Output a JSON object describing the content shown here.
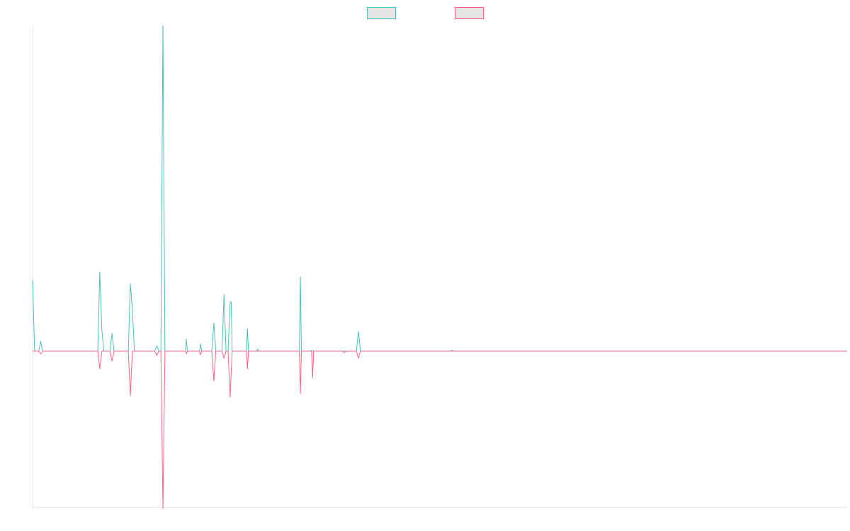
{
  "chart_data": {
    "type": "line",
    "title": "",
    "xlabel": "",
    "ylabel": "",
    "grid": false,
    "legend_placement": "top-center",
    "legend_swatch_fill": "#e6e6e6",
    "x_range": [
      0,
      400
    ],
    "ylim": [
      -220,
      460
    ],
    "series": [
      {
        "color": "#4bc0c0",
        "points": [
          [
            0,
            100
          ],
          [
            1,
            0
          ],
          [
            3,
            0
          ],
          [
            4,
            14
          ],
          [
            5,
            0
          ],
          [
            32,
            0
          ],
          [
            33,
            112
          ],
          [
            34,
            30
          ],
          [
            35,
            0
          ],
          [
            38,
            0
          ],
          [
            39,
            25
          ],
          [
            40,
            0
          ],
          [
            47,
            0
          ],
          [
            48,
            95
          ],
          [
            49,
            60
          ],
          [
            50,
            0
          ],
          [
            60,
            0
          ],
          [
            61,
            8
          ],
          [
            62,
            0
          ],
          [
            63,
            0
          ],
          [
            64,
            460
          ],
          [
            65,
            0
          ],
          [
            75,
            0
          ],
          [
            75.5,
            17
          ],
          [
            76,
            0
          ],
          [
            82,
            0
          ],
          [
            82.5,
            10
          ],
          [
            83,
            0
          ],
          [
            88,
            0
          ],
          [
            89,
            40
          ],
          [
            90,
            0
          ],
          [
            93,
            0
          ],
          [
            94,
            80
          ],
          [
            95,
            0
          ],
          [
            96,
            0
          ],
          [
            97,
            68
          ],
          [
            97.5,
            70
          ],
          [
            98,
            0
          ],
          [
            105,
            0
          ],
          [
            105.5,
            32
          ],
          [
            106,
            0
          ],
          [
            110,
            0
          ],
          [
            110.5,
            3
          ],
          [
            111,
            0
          ],
          [
            131,
            0
          ],
          [
            131.5,
            105
          ],
          [
            132,
            0
          ],
          [
            136,
            0
          ],
          [
            137,
            1
          ],
          [
            138,
            0
          ],
          [
            159,
            0
          ],
          [
            160,
            28
          ],
          [
            161,
            0
          ],
          [
            205,
            0
          ],
          [
            206,
            1
          ],
          [
            207,
            0
          ],
          [
            400,
            0
          ]
        ]
      },
      {
        "color": "#ff6384",
        "points": [
          [
            0,
            0
          ],
          [
            3,
            0
          ],
          [
            4,
            -4
          ],
          [
            5,
            0
          ],
          [
            32,
            0
          ],
          [
            33,
            -25
          ],
          [
            34,
            0
          ],
          [
            38,
            0
          ],
          [
            39,
            -14
          ],
          [
            40,
            0
          ],
          [
            47,
            0
          ],
          [
            48,
            -63
          ],
          [
            49,
            0
          ],
          [
            60,
            0
          ],
          [
            61,
            -6
          ],
          [
            62,
            0
          ],
          [
            63,
            0
          ],
          [
            64,
            -222
          ],
          [
            65,
            0
          ],
          [
            75,
            0
          ],
          [
            75.5,
            -4
          ],
          [
            76,
            0
          ],
          [
            82,
            0
          ],
          [
            82.5,
            -5
          ],
          [
            83,
            0
          ],
          [
            88,
            0
          ],
          [
            89,
            -42
          ],
          [
            90,
            0
          ],
          [
            93,
            0
          ],
          [
            94,
            -10
          ],
          [
            95,
            0
          ],
          [
            96,
            0
          ],
          [
            97,
            -65
          ],
          [
            98,
            0
          ],
          [
            105,
            0
          ],
          [
            105.5,
            -25
          ],
          [
            106,
            0
          ],
          [
            131,
            0
          ],
          [
            131.5,
            -60
          ],
          [
            132,
            0
          ],
          [
            137,
            0
          ],
          [
            137.5,
            -38
          ],
          [
            138,
            0
          ],
          [
            152,
            0
          ],
          [
            153,
            -2
          ],
          [
            154,
            0
          ],
          [
            159,
            0
          ],
          [
            160,
            -10
          ],
          [
            161,
            0
          ],
          [
            400,
            0
          ]
        ]
      }
    ]
  }
}
